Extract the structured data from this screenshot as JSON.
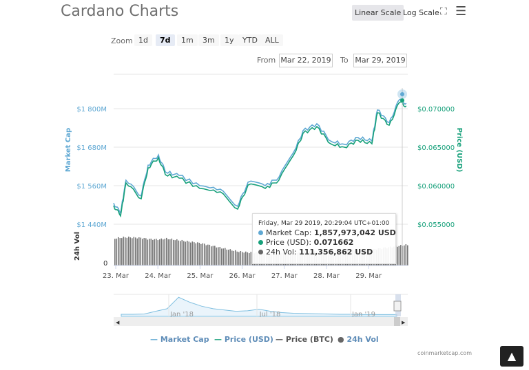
{
  "header": {
    "title": "Cardano Charts",
    "linear_scale": "Linear Scale",
    "log_scale": "Log Scale",
    "fullscreen_icon": "expand-icon",
    "menu_icon": "hamburger-icon"
  },
  "zoom": {
    "label": "Zoom",
    "options": [
      "1d",
      "7d",
      "1m",
      "3m",
      "1y",
      "YTD",
      "ALL"
    ],
    "selected": "7d"
  },
  "range": {
    "from_label": "From",
    "from": "Mar 22, 2019",
    "to_label": "To",
    "to": "Mar 29, 2019"
  },
  "tooltip": {
    "date": "Friday, Mar 29 2019, 20:29:04 UTC+01:00",
    "market_cap_label": "Market Cap:",
    "market_cap": "1,857,973,042 USD",
    "price_label": "Price (USD):",
    "price": "0.071662",
    "vol_label": "24h Vol:",
    "vol": "111,356,862 USD"
  },
  "legend": [
    "Market Cap",
    "Price (USD)",
    "Price (BTC)",
    "24h Vol"
  ],
  "credit": "coinmarketcap.com",
  "colors": {
    "market_cap": "#5fa8d3",
    "price": "#16a07a",
    "btc": "#555555",
    "vol": "#666666"
  },
  "chart_data": {
    "type": "line",
    "left_axis": {
      "label": "Market Cap",
      "ticks": [
        "$1 440M",
        "$1 560M",
        "$1 680M",
        "$1 800M"
      ],
      "tick_values": [
        1440,
        1560,
        1680,
        1800
      ]
    },
    "right_axis": {
      "label": "Price (USD)",
      "ticks": [
        "$0.055000",
        "$0.060000",
        "$0.065000",
        "$0.070000"
      ],
      "tick_values": [
        0.055,
        0.06,
        0.065,
        0.07
      ]
    },
    "vol_axis": {
      "label": "24h Vol",
      "ticks": [
        "0"
      ]
    },
    "x_ticks": [
      "23. Mar",
      "24. Mar",
      "25. Mar",
      "26. Mar",
      "27. Mar",
      "28. Mar",
      "29. Mar"
    ],
    "x_tick_dates": [
      "2019-03-23T00:00",
      "2019-03-24T00:00",
      "2019-03-25T00:00",
      "2019-03-26T00:00",
      "2019-03-27T00:00",
      "2019-03-28T00:00",
      "2019-03-29T00:00"
    ],
    "x": [
      "2019-03-22T22:50",
      "2019-03-23T02:45",
      "2019-03-23T05:50",
      "2019-03-23T14:30",
      "2019-03-23T18:25",
      "2019-03-24T00:20",
      "2019-03-24T04:15",
      "2019-03-24T12:05",
      "2019-03-24T23:50",
      "2019-03-25T11:35",
      "2019-03-25T21:25",
      "2019-03-26T03:20",
      "2019-03-26T13:05",
      "2019-03-26T20:55",
      "2019-03-27T06:40",
      "2019-03-27T10:35",
      "2019-03-27T18:30",
      "2019-03-28T02:20",
      "2019-03-28T10:10",
      "2019-03-28T18:00",
      "2019-03-29T01:50",
      "2019-03-29T05:00",
      "2019-03-29T11:40",
      "2019-03-29T17:30",
      "2019-03-29T21:25"
    ],
    "series": [
      {
        "name": "Market Cap",
        "unit": "M USD",
        "values": [
          1506,
          1474,
          1577,
          1528,
          1624,
          1656,
          1603,
          1592,
          1560,
          1549,
          1496,
          1571,
          1560,
          1586,
          1678,
          1731,
          1753,
          1699,
          1689,
          1710,
          1699,
          1796,
          1757,
          1828,
          1817
        ]
      },
      {
        "name": "Price (USD)",
        "values": [
          0.05741,
          0.05607,
          0.06036,
          0.0583,
          0.06232,
          0.06366,
          0.06143,
          0.06098,
          0.05964,
          0.0592,
          0.05696,
          0.06009,
          0.05964,
          0.06071,
          0.06455,
          0.06679,
          0.06768,
          0.06545,
          0.065,
          0.06589,
          0.06545,
          0.06946,
          0.06786,
          0.0708,
          0.07036
        ]
      },
      {
        "name": "24h Vol",
        "unit": "M USD",
        "values": [
          145,
          150,
          152,
          148,
          142,
          140,
          145,
          135,
          120,
          95,
          75,
          70,
          68,
          68,
          70,
          72,
          75,
          78,
          80,
          82,
          85,
          90,
          98,
          106,
          111
        ]
      }
    ],
    "navigator": {
      "ticks": [
        "Jan '18",
        "Jul '18",
        "Jan '19"
      ],
      "values": [
        8,
        8,
        9,
        20,
        30,
        75,
        55,
        40,
        30,
        25,
        20,
        22,
        28,
        20,
        15,
        12,
        11,
        10,
        9,
        8,
        8,
        7,
        7,
        7,
        7
      ]
    }
  }
}
